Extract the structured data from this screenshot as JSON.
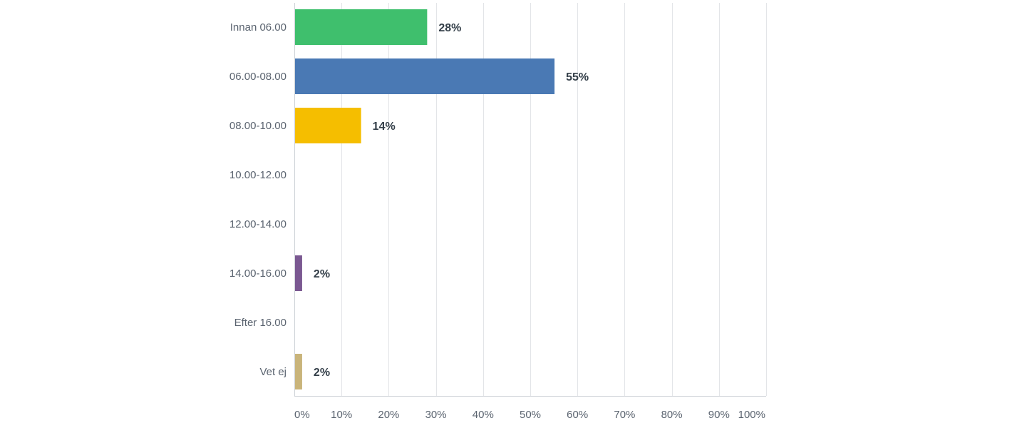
{
  "chart_data": {
    "type": "bar",
    "orientation": "horizontal",
    "categories": [
      "Innan 06.00",
      "06.00-08.00",
      "08.00-10.00",
      "10.00-12.00",
      "12.00-14.00",
      "14.00-16.00",
      "Efter 16.00",
      "Vet ej"
    ],
    "values": [
      28,
      55,
      14,
      0,
      0,
      1.5,
      0,
      1.5
    ],
    "value_labels": [
      "28%",
      "55%",
      "14%",
      "",
      "",
      "2%",
      "",
      "2%"
    ],
    "colors": [
      "#3fbf6d",
      "#4a79b4",
      "#f5be00",
      "#888888",
      "#888888",
      "#7a5891",
      "#888888",
      "#c9b47a"
    ],
    "xlim": [
      0,
      100
    ],
    "x_ticks": [
      0,
      10,
      20,
      30,
      40,
      50,
      60,
      70,
      80,
      90,
      100
    ],
    "x_tick_labels": [
      "0%",
      "10%",
      "20%",
      "30%",
      "40%",
      "50%",
      "60%",
      "70%",
      "80%",
      "90%",
      "100%"
    ],
    "grid": true,
    "title": "",
    "xlabel": "",
    "ylabel": ""
  }
}
